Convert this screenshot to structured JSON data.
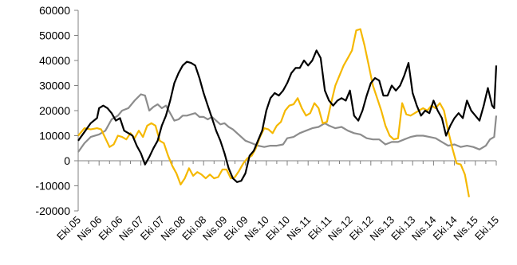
{
  "chart_data": {
    "type": "line",
    "title": "",
    "xlabel": "",
    "ylabel": "",
    "ylim": [
      -20000,
      60000
    ],
    "yticks": [
      -20000,
      -10000,
      0,
      10000,
      20000,
      30000,
      40000,
      50000,
      60000
    ],
    "ytick_labels": [
      "-20000",
      "-10000",
      "0",
      "10000",
      "20000",
      "30000",
      "40000",
      "50000",
      "60000"
    ],
    "grid": false,
    "legend": "none",
    "x_tick_labels": [
      "Eki.05",
      "Nis.06",
      "Eki.06",
      "Nis.07",
      "Eki.07",
      "Nis.08",
      "Eki.08",
      "Nis.09",
      "Eki.09",
      "Nis.10",
      "Eki.10",
      "Nis.11",
      "Eki.11",
      "Nis.12",
      "Eki.12",
      "Nis.13",
      "Eki.13",
      "Nis.14",
      "Eki.14",
      "Nis.15",
      "Eki.15"
    ],
    "x_range": [
      0,
      20
    ],
    "series": [
      {
        "color": "#000000",
        "points": [
          [
            0,
            8000
          ],
          [
            0.3,
            11500
          ],
          [
            0.6,
            15000
          ],
          [
            0.9,
            17000
          ],
          [
            1.0,
            21000
          ],
          [
            1.2,
            22000
          ],
          [
            1.4,
            21000
          ],
          [
            1.6,
            19000
          ],
          [
            1.8,
            16000
          ],
          [
            2.0,
            17000
          ],
          [
            2.2,
            12000
          ],
          [
            2.4,
            11000
          ],
          [
            2.6,
            10000
          ],
          [
            2.8,
            6000
          ],
          [
            3.0,
            3000
          ],
          [
            3.2,
            -1500
          ],
          [
            3.4,
            1500
          ],
          [
            3.6,
            5000
          ],
          [
            3.8,
            8000
          ],
          [
            4.0,
            14000
          ],
          [
            4.2,
            18000
          ],
          [
            4.4,
            24000
          ],
          [
            4.6,
            31000
          ],
          [
            4.8,
            35000
          ],
          [
            5.0,
            38000
          ],
          [
            5.2,
            39500
          ],
          [
            5.4,
            39000
          ],
          [
            5.6,
            38000
          ],
          [
            5.8,
            33000
          ],
          [
            6.0,
            27000
          ],
          [
            6.2,
            22000
          ],
          [
            6.4,
            17000
          ],
          [
            6.6,
            12000
          ],
          [
            6.8,
            8000
          ],
          [
            7.0,
            3000
          ],
          [
            7.2,
            -3000
          ],
          [
            7.4,
            -7000
          ],
          [
            7.6,
            -8500
          ],
          [
            7.8,
            -8000
          ],
          [
            8.0,
            -5000
          ],
          [
            8.2,
            2000
          ],
          [
            8.4,
            4000
          ],
          [
            8.6,
            8000
          ],
          [
            8.8,
            12000
          ],
          [
            9.0,
            20000
          ],
          [
            9.2,
            25000
          ],
          [
            9.4,
            27000
          ],
          [
            9.6,
            26000
          ],
          [
            9.8,
            28000
          ],
          [
            10.0,
            31000
          ],
          [
            10.2,
            35000
          ],
          [
            10.4,
            37000
          ],
          [
            10.6,
            37000
          ],
          [
            10.8,
            40000
          ],
          [
            11.0,
            38000
          ],
          [
            11.2,
            40000
          ],
          [
            11.4,
            44000
          ],
          [
            11.6,
            41000
          ],
          [
            11.8,
            28000
          ],
          [
            12.0,
            24000
          ],
          [
            12.2,
            22000
          ],
          [
            12.4,
            24000
          ],
          [
            12.6,
            25000
          ],
          [
            12.8,
            24000
          ],
          [
            13.0,
            28000
          ],
          [
            13.2,
            18000
          ],
          [
            13.4,
            16000
          ],
          [
            13.6,
            20000
          ],
          [
            13.8,
            26000
          ],
          [
            14.0,
            31000
          ],
          [
            14.2,
            33000
          ],
          [
            14.4,
            32000
          ],
          [
            14.6,
            26000
          ],
          [
            14.8,
            26000
          ],
          [
            15.0,
            30000
          ],
          [
            15.2,
            28000
          ],
          [
            15.4,
            30000
          ],
          [
            15.6,
            34000
          ],
          [
            15.8,
            39000
          ],
          [
            16.0,
            27000
          ],
          [
            16.2,
            22000
          ],
          [
            16.4,
            18000
          ],
          [
            16.6,
            20000
          ],
          [
            16.8,
            19000
          ],
          [
            17.0,
            24000
          ],
          [
            17.2,
            20000
          ],
          [
            17.4,
            17000
          ],
          [
            17.6,
            10000
          ],
          [
            17.8,
            14000
          ],
          [
            18.0,
            17000
          ],
          [
            18.2,
            19000
          ],
          [
            18.4,
            17000
          ],
          [
            18.6,
            24000
          ],
          [
            18.8,
            20000
          ],
          [
            19.0,
            18000
          ],
          [
            19.2,
            16000
          ],
          [
            19.4,
            22000
          ],
          [
            19.6,
            29000
          ],
          [
            19.8,
            22000
          ],
          [
            19.9,
            21000
          ],
          [
            20.0,
            38000
          ]
        ]
      },
      {
        "color": "#8c8c8c",
        "points": [
          [
            0,
            3500
          ],
          [
            0.3,
            7000
          ],
          [
            0.6,
            9500
          ],
          [
            1.0,
            10500
          ],
          [
            1.3,
            12000
          ],
          [
            1.6,
            16500
          ],
          [
            1.9,
            18000
          ],
          [
            2.1,
            20000
          ],
          [
            2.4,
            21000
          ],
          [
            2.7,
            24000
          ],
          [
            3.0,
            26500
          ],
          [
            3.2,
            26000
          ],
          [
            3.4,
            20000
          ],
          [
            3.6,
            21500
          ],
          [
            3.8,
            22500
          ],
          [
            4.0,
            21000
          ],
          [
            4.2,
            22000
          ],
          [
            4.4,
            19000
          ],
          [
            4.6,
            16000
          ],
          [
            4.8,
            16500
          ],
          [
            5.0,
            18000
          ],
          [
            5.2,
            18000
          ],
          [
            5.4,
            18500
          ],
          [
            5.6,
            19000
          ],
          [
            5.8,
            17500
          ],
          [
            6.0,
            17500
          ],
          [
            6.2,
            16500
          ],
          [
            6.4,
            17500
          ],
          [
            6.6,
            16000
          ],
          [
            6.8,
            14500
          ],
          [
            7.0,
            15000
          ],
          [
            7.2,
            13500
          ],
          [
            7.4,
            12500
          ],
          [
            7.6,
            11000
          ],
          [
            7.8,
            9500
          ],
          [
            8.0,
            8000
          ],
          [
            8.3,
            7000
          ],
          [
            8.6,
            6000
          ],
          [
            8.9,
            5500
          ],
          [
            9.2,
            6000
          ],
          [
            9.5,
            6000
          ],
          [
            9.8,
            6500
          ],
          [
            10.0,
            9000
          ],
          [
            10.3,
            9500
          ],
          [
            10.6,
            11000
          ],
          [
            10.9,
            12000
          ],
          [
            11.2,
            13000
          ],
          [
            11.5,
            13500
          ],
          [
            11.8,
            15000
          ],
          [
            12.0,
            14000
          ],
          [
            12.3,
            13000
          ],
          [
            12.6,
            13500
          ],
          [
            12.9,
            12000
          ],
          [
            13.2,
            11000
          ],
          [
            13.5,
            10500
          ],
          [
            13.8,
            9000
          ],
          [
            14.1,
            8500
          ],
          [
            14.4,
            8500
          ],
          [
            14.7,
            6500
          ],
          [
            15.0,
            7500
          ],
          [
            15.3,
            7500
          ],
          [
            15.6,
            8500
          ],
          [
            15.9,
            9500
          ],
          [
            16.2,
            10000
          ],
          [
            16.5,
            10000
          ],
          [
            16.8,
            9500
          ],
          [
            17.1,
            9000
          ],
          [
            17.4,
            7500
          ],
          [
            17.7,
            6000
          ],
          [
            18.0,
            6500
          ],
          [
            18.3,
            5500
          ],
          [
            18.6,
            6000
          ],
          [
            18.9,
            5500
          ],
          [
            19.2,
            4500
          ],
          [
            19.5,
            6000
          ],
          [
            19.7,
            8500
          ],
          [
            19.9,
            9500
          ],
          [
            20.0,
            18000
          ]
        ]
      },
      {
        "color": "#f5b800",
        "points": [
          [
            0,
            10000
          ],
          [
            0.3,
            13000
          ],
          [
            0.6,
            12500
          ],
          [
            0.9,
            13000
          ],
          [
            1.1,
            12500
          ],
          [
            1.3,
            9000
          ],
          [
            1.5,
            5500
          ],
          [
            1.7,
            6500
          ],
          [
            1.9,
            10000
          ],
          [
            2.1,
            9500
          ],
          [
            2.3,
            8500
          ],
          [
            2.5,
            11000
          ],
          [
            2.7,
            9000
          ],
          [
            2.9,
            12000
          ],
          [
            3.1,
            9500
          ],
          [
            3.3,
            14000
          ],
          [
            3.5,
            15000
          ],
          [
            3.7,
            14000
          ],
          [
            3.9,
            8000
          ],
          [
            4.1,
            7000
          ],
          [
            4.3,
            2000
          ],
          [
            4.5,
            -2000
          ],
          [
            4.7,
            -5000
          ],
          [
            4.9,
            -9500
          ],
          [
            5.1,
            -7000
          ],
          [
            5.3,
            -3000
          ],
          [
            5.5,
            -6000
          ],
          [
            5.7,
            -4500
          ],
          [
            5.9,
            -5500
          ],
          [
            6.1,
            -7000
          ],
          [
            6.3,
            -5500
          ],
          [
            6.5,
            -7000
          ],
          [
            6.7,
            -6500
          ],
          [
            6.9,
            -3500
          ],
          [
            7.1,
            -3500
          ],
          [
            7.3,
            -7000
          ],
          [
            7.5,
            -6500
          ],
          [
            7.7,
            -4000
          ],
          [
            7.9,
            -1000
          ],
          [
            8.1,
            1000
          ],
          [
            8.3,
            2000
          ],
          [
            8.5,
            5000
          ],
          [
            8.7,
            9500
          ],
          [
            8.9,
            13000
          ],
          [
            9.1,
            12500
          ],
          [
            9.3,
            11000
          ],
          [
            9.5,
            14000
          ],
          [
            9.7,
            15500
          ],
          [
            9.9,
            20000
          ],
          [
            10.1,
            22000
          ],
          [
            10.3,
            22500
          ],
          [
            10.5,
            25000
          ],
          [
            10.7,
            21000
          ],
          [
            10.9,
            18000
          ],
          [
            11.1,
            19000
          ],
          [
            11.3,
            23000
          ],
          [
            11.5,
            21000
          ],
          [
            11.7,
            15000
          ],
          [
            11.9,
            15500
          ],
          [
            12.1,
            23000
          ],
          [
            12.3,
            30000
          ],
          [
            12.5,
            34000
          ],
          [
            12.7,
            38000
          ],
          [
            12.9,
            41000
          ],
          [
            13.1,
            44000
          ],
          [
            13.3,
            52000
          ],
          [
            13.5,
            52500
          ],
          [
            13.7,
            46000
          ],
          [
            13.9,
            38000
          ],
          [
            14.1,
            30000
          ],
          [
            14.3,
            25000
          ],
          [
            14.5,
            20000
          ],
          [
            14.7,
            14000
          ],
          [
            14.9,
            10000
          ],
          [
            15.1,
            8500
          ],
          [
            15.3,
            9000
          ],
          [
            15.5,
            23000
          ],
          [
            15.7,
            18500
          ],
          [
            15.9,
            18000
          ],
          [
            16.1,
            19000
          ],
          [
            16.3,
            20000
          ],
          [
            16.5,
            21000
          ],
          [
            16.7,
            20000
          ],
          [
            16.9,
            22000
          ],
          [
            17.1,
            21000
          ],
          [
            17.3,
            23000
          ],
          [
            17.5,
            20000
          ],
          [
            17.7,
            12000
          ],
          [
            17.9,
            5000
          ],
          [
            18.1,
            -1000
          ],
          [
            18.3,
            -1500
          ],
          [
            18.5,
            -5500
          ],
          [
            18.7,
            -14500
          ]
        ]
      }
    ]
  }
}
